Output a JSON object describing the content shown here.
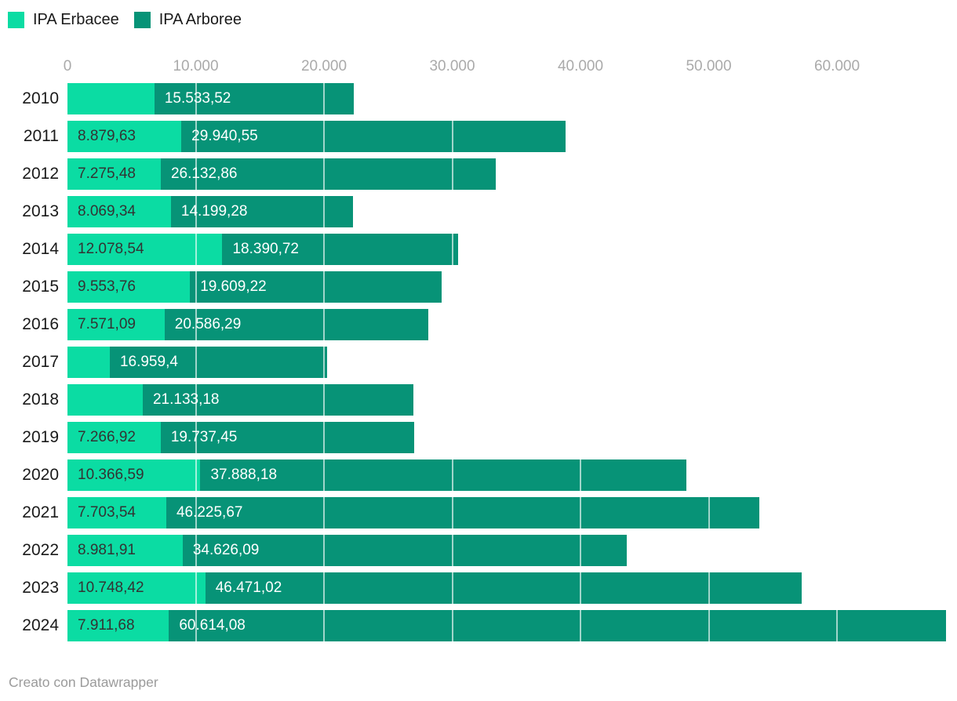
{
  "footer": {
    "credit": "Creato con Datawrapper"
  },
  "chart_data": {
    "type": "bar",
    "orientation": "horizontal",
    "stacked": true,
    "title": "",
    "legend_position": "top-left",
    "grid": true,
    "categories": [
      "2010",
      "2011",
      "2012",
      "2013",
      "2014",
      "2015",
      "2016",
      "2017",
      "2018",
      "2019",
      "2020",
      "2021",
      "2022",
      "2023",
      "2024"
    ],
    "series": [
      {
        "name": "IPA Erbacee",
        "color": "#0bdca3",
        "label_color": "#333333",
        "values": [
          6780,
          8879.63,
          7275.48,
          8069.34,
          12078.54,
          9553.76,
          7571.09,
          3300,
          5870,
          7266.92,
          10366.59,
          7703.54,
          8981.91,
          10748.42,
          7911.68
        ],
        "labels": [
          "",
          "8.879,63",
          "7.275,48",
          "8.069,34",
          "12.078,54",
          "9.553,76",
          "7.571,09",
          "",
          "",
          "7.266,92",
          "10.366,59",
          "7.703,54",
          "8.981,91",
          "10.748,42",
          "7.911,68"
        ]
      },
      {
        "name": "IPA Arboree",
        "color": "#079377",
        "label_color": "#ffffff",
        "values": [
          15533.52,
          29940.55,
          26132.86,
          14199.28,
          18390.72,
          19609.22,
          20586.29,
          16959.4,
          21133.18,
          19737.45,
          37888.18,
          46225.67,
          34626.09,
          46471.02,
          60614.08
        ],
        "labels": [
          "15.533,52",
          "29.940,55",
          "26.132,86",
          "14.199,28",
          "18.390,72",
          "19.609,22",
          "20.586,29",
          "16.959,4",
          "21.133,18",
          "19.737,45",
          "37.888,18",
          "46.225,67",
          "34.626,09",
          "46.471,02",
          "60.614,08"
        ]
      }
    ],
    "x_axis": {
      "ticks": [
        {
          "value": 0,
          "label": "0"
        },
        {
          "value": 10000,
          "label": "10.000"
        },
        {
          "value": 20000,
          "label": "20.000"
        },
        {
          "value": 30000,
          "label": "30.000"
        },
        {
          "value": 40000,
          "label": "40.000"
        },
        {
          "value": 50000,
          "label": "50.000"
        },
        {
          "value": 60000,
          "label": "60.000"
        }
      ],
      "max": 68525.76
    }
  }
}
